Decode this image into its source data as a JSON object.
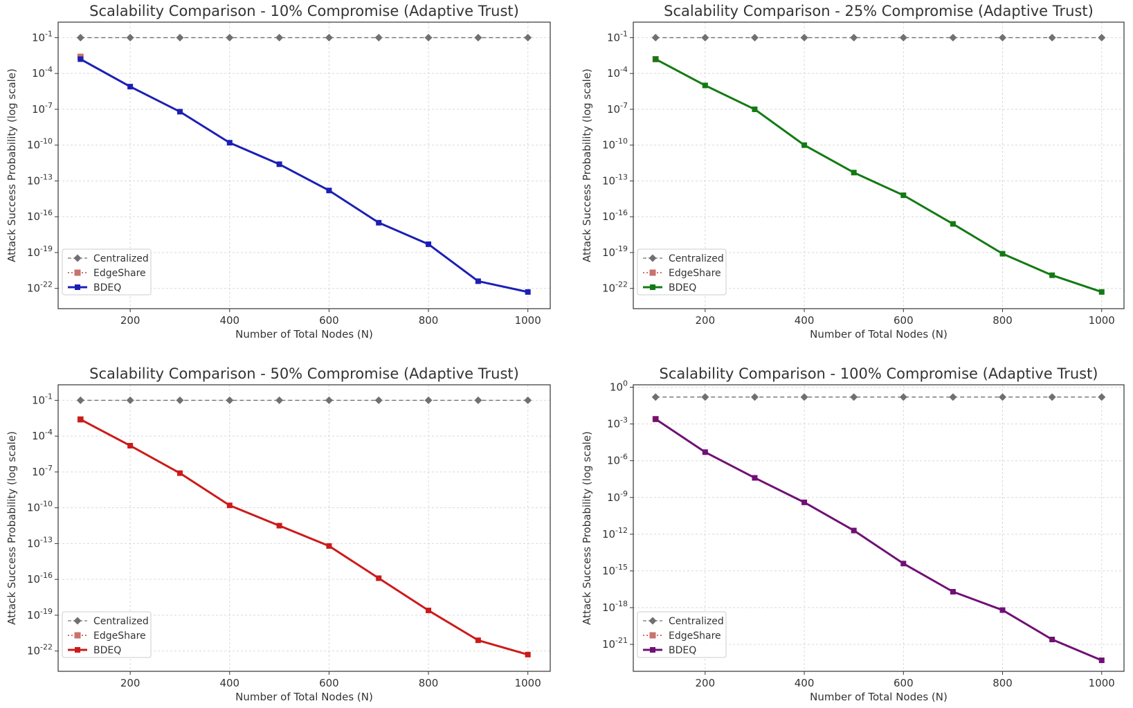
{
  "chart_data": [
    {
      "type": "line",
      "title": "Scalability Comparison - 10% Compromise (Adaptive Trust)",
      "xlabel": "Number of Total Nodes (N)",
      "ylabel": "Attack Success Probability (log scale)",
      "yscale": "log",
      "x": [
        100,
        200,
        300,
        400,
        500,
        600,
        700,
        800,
        900,
        1000
      ],
      "xticks": [
        200,
        400,
        600,
        800,
        1000
      ],
      "ylim_log10": [
        -23.7,
        0.3
      ],
      "yticks_log10": [
        -1,
        -4,
        -7,
        -10,
        -13,
        -16,
        -19,
        -22
      ],
      "ytick_labels": [
        "10^-1",
        "10^-4",
        "10^-7",
        "10^-10",
        "10^-13",
        "10^-16",
        "10^-19",
        "10^-22"
      ],
      "grid": true,
      "legend_position": "lower-left",
      "series": [
        {
          "name": "Centralized",
          "color": "#707070",
          "style": "dashed",
          "marker": "diamond",
          "log10_values": [
            -1,
            -1,
            -1,
            -1,
            -1,
            -1,
            -1,
            -1,
            -1,
            -1
          ]
        },
        {
          "name": "EdgeShare",
          "color": "#c8736e",
          "style": "dotted",
          "marker": "square",
          "log10_values": [
            -2.6
          ]
        },
        {
          "name": "BDEQ",
          "color": "#1c1fb4",
          "style": "solid",
          "marker": "circle",
          "log10_values": [
            -2.8,
            -5.1,
            -7.2,
            -9.8,
            -11.6,
            -13.8,
            -16.5,
            -18.3,
            -21.4,
            -22.3
          ]
        }
      ]
    },
    {
      "type": "line",
      "title": "Scalability Comparison - 25% Compromise (Adaptive Trust)",
      "xlabel": "Number of Total Nodes (N)",
      "ylabel": "Attack Success Probability (log scale)",
      "yscale": "log",
      "x": [
        100,
        200,
        300,
        400,
        500,
        600,
        700,
        800,
        900,
        1000
      ],
      "xticks": [
        200,
        400,
        600,
        800,
        1000
      ],
      "ylim_log10": [
        -23.7,
        0.3
      ],
      "yticks_log10": [
        -1,
        -4,
        -7,
        -10,
        -13,
        -16,
        -19,
        -22
      ],
      "ytick_labels": [
        "10^-1",
        "10^-4",
        "10^-7",
        "10^-10",
        "10^-13",
        "10^-16",
        "10^-19",
        "10^-22"
      ],
      "grid": true,
      "legend_position": "lower-left",
      "series": [
        {
          "name": "Centralized",
          "color": "#707070",
          "style": "dashed",
          "marker": "diamond",
          "log10_values": [
            -1,
            -1,
            -1,
            -1,
            -1,
            -1,
            -1,
            -1,
            -1,
            -1
          ]
        },
        {
          "name": "EdgeShare",
          "color": "#c8736e",
          "style": "dotted",
          "marker": "square",
          "log10_values": [
            -2.8
          ]
        },
        {
          "name": "BDEQ",
          "color": "#137a13",
          "style": "solid",
          "marker": "circle",
          "log10_values": [
            -2.8,
            -5.0,
            -7.0,
            -10.0,
            -12.3,
            -14.2,
            -16.6,
            -19.1,
            -20.9,
            -22.3
          ]
        }
      ]
    },
    {
      "type": "line",
      "title": "Scalability Comparison - 50% Compromise (Adaptive Trust)",
      "xlabel": "Number of Total Nodes (N)",
      "ylabel": "Attack Success Probability (log scale)",
      "yscale": "log",
      "x": [
        100,
        200,
        300,
        400,
        500,
        600,
        700,
        800,
        900,
        1000
      ],
      "xticks": [
        200,
        400,
        600,
        800,
        1000
      ],
      "ylim_log10": [
        -23.7,
        0.3
      ],
      "yticks_log10": [
        -1,
        -4,
        -7,
        -10,
        -13,
        -16,
        -19,
        -22
      ],
      "ytick_labels": [
        "10^-1",
        "10^-4",
        "10^-7",
        "10^-10",
        "10^-13",
        "10^-16",
        "10^-19",
        "10^-22"
      ],
      "grid": true,
      "legend_position": "lower-left",
      "series": [
        {
          "name": "Centralized",
          "color": "#707070",
          "style": "dashed",
          "marker": "diamond",
          "log10_values": [
            -1,
            -1,
            -1,
            -1,
            -1,
            -1,
            -1,
            -1,
            -1,
            -1
          ]
        },
        {
          "name": "EdgeShare",
          "color": "#c8736e",
          "style": "dotted",
          "marker": "square",
          "log10_values": [
            -2.6
          ]
        },
        {
          "name": "BDEQ",
          "color": "#cc1a1a",
          "style": "solid",
          "marker": "circle",
          "log10_values": [
            -2.6,
            -4.8,
            -7.1,
            -9.8,
            -11.5,
            -13.2,
            -15.9,
            -18.6,
            -21.1,
            -22.3
          ]
        }
      ]
    },
    {
      "type": "line",
      "title": "Scalability Comparison - 100% Compromise (Adaptive Trust)",
      "xlabel": "Number of Total Nodes (N)",
      "ylabel": "Attack Success Probability (log scale)",
      "yscale": "log",
      "x": [
        100,
        200,
        300,
        400,
        500,
        600,
        700,
        800,
        900,
        1000
      ],
      "xticks": [
        200,
        400,
        600,
        800,
        1000
      ],
      "ylim_log10": [
        -23.2,
        0.2
      ],
      "yticks_log10": [
        0,
        -3,
        -6,
        -9,
        -12,
        -15,
        -18,
        -21
      ],
      "ytick_labels": [
        "10^0",
        "10^-3",
        "10^-6",
        "10^-9",
        "10^-12",
        "10^-15",
        "10^-18",
        "10^-21"
      ],
      "grid": true,
      "legend_position": "lower-left",
      "series": [
        {
          "name": "Centralized",
          "color": "#707070",
          "style": "dashed",
          "marker": "diamond",
          "log10_values": [
            -0.8,
            -0.8,
            -0.8,
            -0.8,
            -0.8,
            -0.8,
            -0.8,
            -0.8,
            -0.8,
            -0.8
          ]
        },
        {
          "name": "EdgeShare",
          "color": "#c8736e",
          "style": "dotted",
          "marker": "square",
          "log10_values": [
            -2.6
          ]
        },
        {
          "name": "BDEQ",
          "color": "#701075",
          "style": "solid",
          "marker": "circle",
          "log10_values": [
            -2.6,
            -5.3,
            -7.4,
            -9.4,
            -11.7,
            -14.4,
            -16.7,
            -18.2,
            -20.6,
            -22.3
          ]
        }
      ]
    }
  ]
}
